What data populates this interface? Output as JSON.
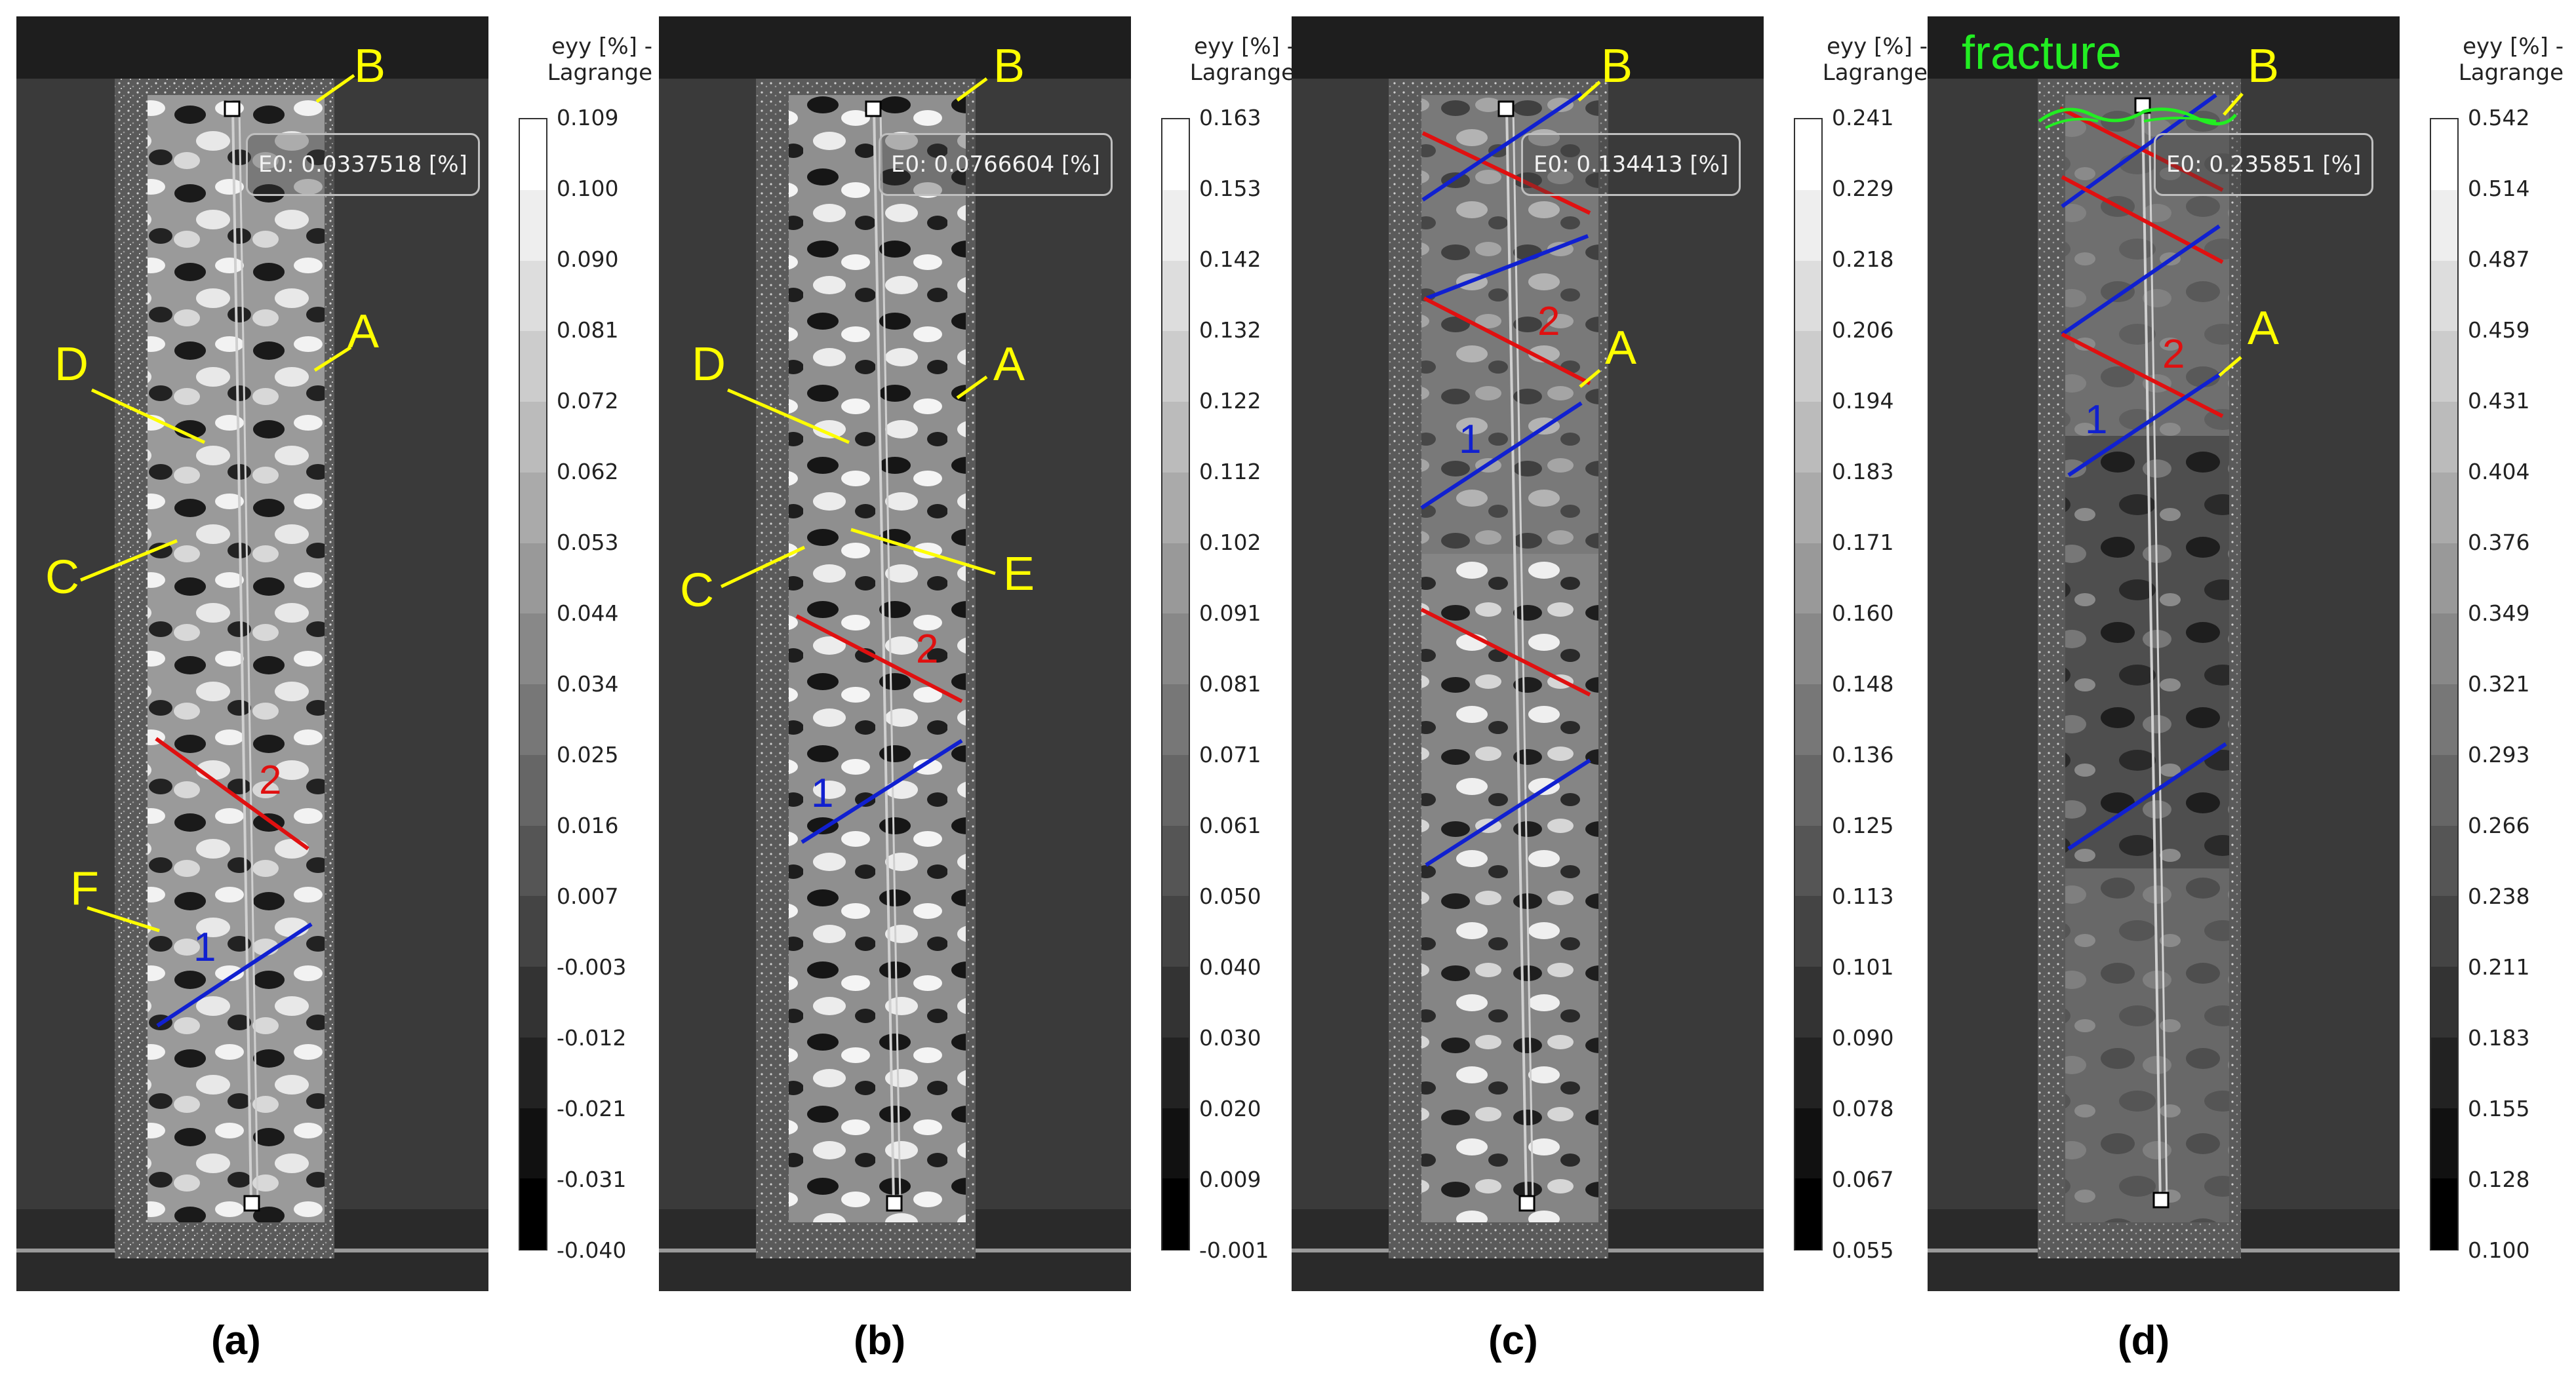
{
  "colorbar_title": "eyy [%] -\nLagrange",
  "colors": {
    "marker_yellow": "#ffff00",
    "line_red": "#e01010",
    "line_blue": "#1020d0",
    "fracture_green": "#22ee22"
  },
  "panels": [
    {
      "label": "(a)",
      "readout": "E0: 0.0337518 [%]",
      "ticks": [
        "0.109",
        "0.100",
        "0.090",
        "0.081",
        "0.072",
        "0.062",
        "0.053",
        "0.044",
        "0.034",
        "0.025",
        "0.016",
        "0.007",
        "-0.003",
        "-0.012",
        "-0.021",
        "-0.031",
        "-0.040"
      ],
      "markers": [
        "B",
        "A",
        "D",
        "C",
        "F"
      ],
      "line_labels": [
        "2",
        "1"
      ]
    },
    {
      "label": "(b)",
      "readout": "E0: 0.0766604 [%]",
      "ticks": [
        "0.163",
        "0.153",
        "0.142",
        "0.132",
        "0.122",
        "0.112",
        "0.102",
        "0.091",
        "0.081",
        "0.071",
        "0.061",
        "0.050",
        "0.040",
        "0.030",
        "0.020",
        "0.009",
        "-0.001"
      ],
      "markers": [
        "B",
        "A",
        "D",
        "C",
        "E"
      ],
      "line_labels": [
        "2",
        "1"
      ]
    },
    {
      "label": "(c)",
      "readout": "E0: 0.134413 [%]",
      "ticks": [
        "0.241",
        "0.229",
        "0.218",
        "0.206",
        "0.194",
        "0.183",
        "0.171",
        "0.160",
        "0.148",
        "0.136",
        "0.125",
        "0.113",
        "0.101",
        "0.090",
        "0.078",
        "0.067",
        "0.055"
      ],
      "markers": [
        "B",
        "A"
      ],
      "line_labels": [
        "2",
        "1"
      ]
    },
    {
      "label": "(d)",
      "readout": "E0: 0.235851 [%]",
      "ticks": [
        "0.542",
        "0.514",
        "0.487",
        "0.459",
        "0.431",
        "0.404",
        "0.376",
        "0.349",
        "0.321",
        "0.293",
        "0.266",
        "0.238",
        "0.211",
        "0.183",
        "0.155",
        "0.128",
        "0.100"
      ],
      "markers": [
        "B",
        "A"
      ],
      "line_labels": [
        "2",
        "1"
      ],
      "annotation": "fracture"
    }
  ]
}
